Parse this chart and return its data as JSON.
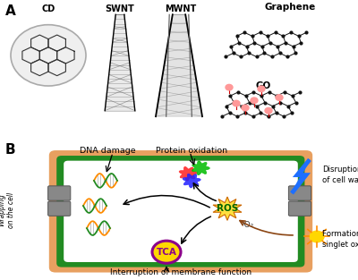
{
  "background_color": "#ffffff",
  "panel_A_label": "A",
  "panel_B_label": "B",
  "cell_outer_color": "#E8A060",
  "cell_inner_color": "#228B22",
  "cell_fill_color": "#FFFFFF",
  "ros_star_color": "#FFD700",
  "ros_edge_color": "#CC6600",
  "ros_text_color": "#006600",
  "tca_fill": "#FFD700",
  "tca_ring": "#8B008B",
  "tca_text": "#8B008B",
  "dna_color1": "#FF8C00",
  "dna_color2": "#228B22",
  "protein_red": "#FF2020",
  "protein_green": "#00BB00",
  "protein_blue": "#2020FF",
  "lightning_color": "#1E6FFF",
  "arrow_color": "#000000",
  "sun_color": "#FFD700",
  "sun_ray_color": "#FF8C00",
  "singlet_arrow_color": "#8B4513",
  "gray_channel": "#888888",
  "label_dna": "DNA damage",
  "label_protein": "Protein oxidation",
  "label_ros": "ROS",
  "label_tca": "TCA",
  "label_o2": "¹O₂",
  "label_disruption": "Disruption\nof cell wall",
  "label_singlet": "Formation of\nsinglet oxygen",
  "label_wrapping": "Wrapping\non the cell",
  "label_membrane": "Interruption of membrane function",
  "label_graphene": "Graphene",
  "label_go": "GO",
  "label_cd": "CD",
  "label_swnt": "SWNT",
  "label_mwnt": "MWNT"
}
